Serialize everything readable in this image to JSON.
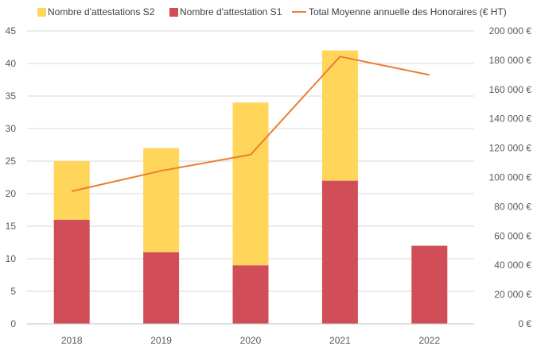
{
  "chart_data": {
    "type": "bar",
    "stacked": true,
    "categories": [
      "2018",
      "2019",
      "2020",
      "2021",
      "2022"
    ],
    "series": [
      {
        "name": "Nombre d'attestation S1",
        "type": "bar",
        "axis": "left",
        "color": "#D14E58",
        "values": [
          16,
          11,
          9,
          22,
          12
        ]
      },
      {
        "name": "Nombre d'attestations S2",
        "type": "bar",
        "axis": "left",
        "color": "#FFD65A",
        "values": [
          9,
          16,
          25,
          20,
          0
        ]
      },
      {
        "name": "Total Moyenne annuelle des Honoraires (€ HT)",
        "type": "line",
        "axis": "right",
        "color": "#ED7D31",
        "values": [
          90500,
          104500,
          115500,
          182500,
          170000
        ]
      }
    ],
    "y_left": {
      "min": 0,
      "max": 45,
      "step": 5,
      "ticks": [
        "0",
        "5",
        "10",
        "15",
        "20",
        "25",
        "30",
        "35",
        "40",
        "45"
      ]
    },
    "y_right": {
      "min": 0,
      "max": 200000,
      "step": 20000,
      "ticks": [
        "0 €",
        "20 000 €",
        "40 000 €",
        "60 000 €",
        "80 000 €",
        "100 000 €",
        "120 000 €",
        "140 000 €",
        "160 000 €",
        "180 000 €",
        "200 000 €"
      ]
    },
    "grid": true,
    "legend_position": "top",
    "legend": [
      {
        "label": "Nombre d'attestations S2",
        "kind": "box",
        "color": "#FFD65A"
      },
      {
        "label": "Nombre d'attestation S1",
        "kind": "box",
        "color": "#D14E58"
      },
      {
        "label": "Total Moyenne annuelle des Honoraires (€ HT)",
        "kind": "line",
        "color": "#ED7D31"
      }
    ]
  }
}
